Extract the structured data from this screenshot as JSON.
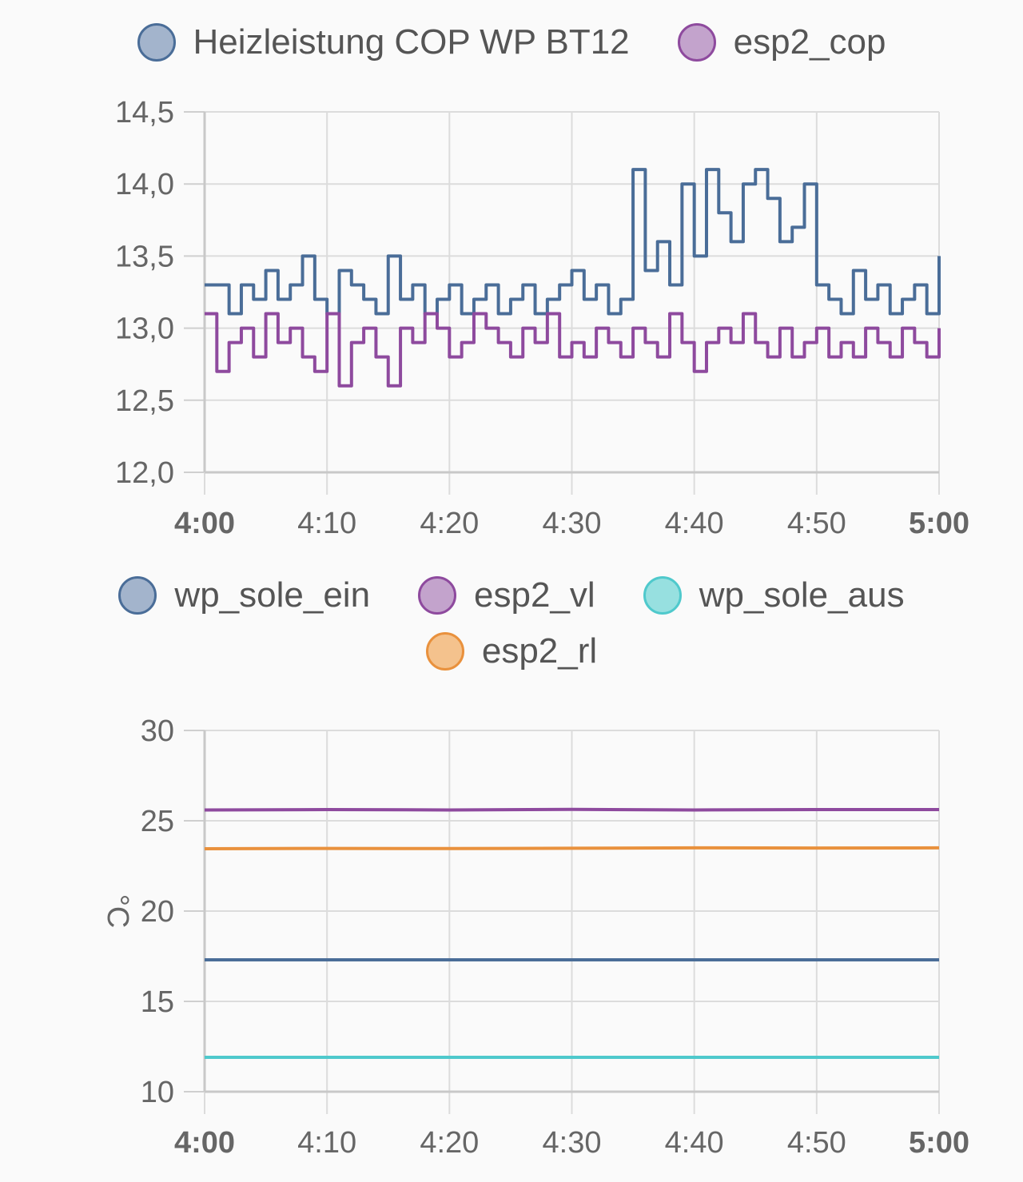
{
  "chart_data": [
    {
      "type": "line",
      "title": "",
      "xlabel": "",
      "ylabel": "",
      "x_ticks": [
        "4:00",
        "4:10",
        "4:20",
        "4:30",
        "4:40",
        "4:50",
        "5:00"
      ],
      "x_ticks_bold": [
        true,
        false,
        false,
        false,
        false,
        false,
        true
      ],
      "xlim": [
        0,
        60
      ],
      "ylim": [
        12.0,
        14.5
      ],
      "y_ticks": [
        "14,5",
        "14,0",
        "13,5",
        "13,0",
        "12,5",
        "12,0"
      ],
      "grid": true,
      "legend": "top",
      "series": [
        {
          "name": "Heizleistung COP WP BT12",
          "color": "#4a6d98",
          "fill": "#a3b4cc",
          "style": "step",
          "x": [
            0,
            2,
            3,
            4,
            5,
            6,
            7,
            8,
            9,
            10,
            11,
            12,
            13,
            14,
            15,
            16,
            17,
            18,
            19,
            20,
            21,
            22,
            23,
            24,
            25,
            26,
            27,
            28,
            29,
            30,
            31,
            32,
            33,
            34,
            35,
            36,
            37,
            38,
            39,
            40,
            41,
            42,
            43,
            44,
            45,
            46,
            47,
            48,
            49,
            50,
            51,
            52,
            53,
            54,
            55,
            56,
            57,
            58,
            59,
            60
          ],
          "y": [
            13.3,
            13.1,
            13.3,
            13.2,
            13.4,
            13.2,
            13.3,
            13.5,
            13.2,
            13.1,
            13.4,
            13.3,
            13.2,
            13.1,
            13.5,
            13.2,
            13.3,
            13.1,
            13.2,
            13.3,
            13.1,
            13.2,
            13.3,
            13.1,
            13.2,
            13.3,
            13.1,
            13.2,
            13.3,
            13.4,
            13.2,
            13.3,
            13.1,
            13.2,
            14.1,
            13.4,
            13.6,
            13.3,
            14.0,
            13.5,
            14.1,
            13.8,
            13.6,
            14.0,
            14.1,
            13.9,
            13.6,
            13.7,
            14.0,
            13.3,
            13.2,
            13.1,
            13.4,
            13.2,
            13.3,
            13.1,
            13.2,
            13.3,
            13.1,
            13.5
          ]
        },
        {
          "name": "esp2_cop",
          "color": "#8e4a9e",
          "fill": "#c3a3cc",
          "style": "step",
          "x": [
            0,
            1,
            2,
            3,
            4,
            5,
            6,
            7,
            8,
            9,
            10,
            11,
            12,
            13,
            14,
            15,
            16,
            17,
            18,
            19,
            20,
            21,
            22,
            23,
            24,
            25,
            26,
            27,
            28,
            29,
            30,
            31,
            32,
            33,
            34,
            35,
            36,
            37,
            38,
            39,
            40,
            41,
            42,
            43,
            44,
            45,
            46,
            47,
            48,
            49,
            50,
            51,
            52,
            53,
            54,
            55,
            56,
            57,
            58,
            59,
            60
          ],
          "y": [
            13.1,
            12.7,
            12.9,
            13.0,
            12.8,
            13.1,
            12.9,
            13.0,
            12.8,
            12.7,
            13.1,
            12.6,
            12.9,
            13.0,
            12.8,
            12.6,
            13.0,
            12.9,
            13.1,
            13.0,
            12.8,
            12.9,
            13.1,
            13.0,
            12.9,
            12.8,
            13.0,
            12.9,
            13.1,
            12.8,
            12.9,
            12.8,
            13.0,
            12.9,
            12.8,
            13.0,
            12.9,
            12.8,
            13.1,
            12.9,
            12.7,
            12.9,
            13.0,
            12.9,
            13.1,
            12.9,
            12.8,
            13.0,
            12.8,
            12.9,
            13.0,
            12.8,
            12.9,
            12.8,
            13.0,
            12.9,
            12.8,
            13.0,
            12.9,
            12.8,
            13.0
          ]
        }
      ]
    },
    {
      "type": "line",
      "title": "",
      "xlabel": "",
      "ylabel": "°C",
      "x_ticks": [
        "4:00",
        "4:10",
        "4:20",
        "4:30",
        "4:40",
        "4:50",
        "5:00"
      ],
      "x_ticks_bold": [
        true,
        false,
        false,
        false,
        false,
        false,
        true
      ],
      "xlim": [
        0,
        60
      ],
      "ylim": [
        10,
        30
      ],
      "y_ticks": [
        "30",
        "25",
        "20",
        "15",
        "10"
      ],
      "grid": true,
      "legend": "top",
      "series": [
        {
          "name": "wp_sole_ein",
          "color": "#4a6d98",
          "fill": "#a3b4cc",
          "x": [
            0,
            60
          ],
          "y": [
            17.3,
            17.3
          ]
        },
        {
          "name": "esp2_vl",
          "color": "#8e4a9e",
          "fill": "#c3a3cc",
          "x": [
            0,
            10,
            20,
            30,
            40,
            50,
            60
          ],
          "y": [
            25.6,
            25.62,
            25.6,
            25.63,
            25.6,
            25.62,
            25.62
          ]
        },
        {
          "name": "wp_sole_aus",
          "color": "#4fc9cc",
          "fill": "#97e0e0",
          "x": [
            0,
            60
          ],
          "y": [
            11.9,
            11.9
          ]
        },
        {
          "name": "esp2_rl",
          "color": "#e9913d",
          "fill": "#f4c28d",
          "x": [
            0,
            10,
            20,
            30,
            40,
            50,
            60
          ],
          "y": [
            23.45,
            23.47,
            23.46,
            23.48,
            23.5,
            23.49,
            23.5
          ]
        }
      ]
    }
  ]
}
